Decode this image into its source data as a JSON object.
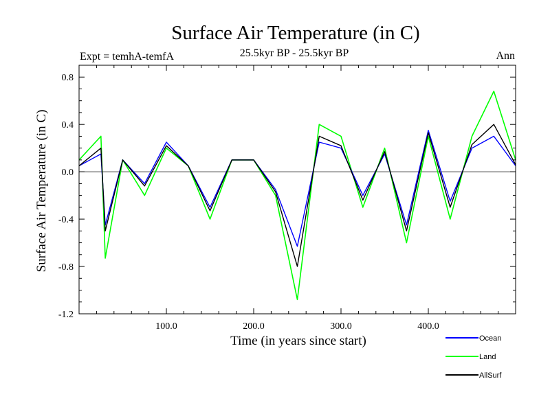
{
  "chart_data": {
    "type": "line",
    "title": "Surface Air Temperature (in C)",
    "subtitle": "25.5kyr BP - 25.5kyr BP",
    "left_label": "Expt = temhA-temfA",
    "right_label": "Ann",
    "xlabel": "Time (in years since start)",
    "ylabel": "Surface Air Temperature (in C)",
    "xlim": [
      0,
      500
    ],
    "ylim": [
      -1.2,
      0.9
    ],
    "x_ticks": [
      100,
      200,
      300,
      400
    ],
    "x_tick_labels": [
      "100.0",
      "200.0",
      "300.0",
      "400.0"
    ],
    "y_ticks": [
      -1.2,
      -0.8,
      -0.4,
      0.0,
      0.4,
      0.8
    ],
    "y_tick_labels": [
      "-1.2",
      "-0.8",
      "-0.4",
      "0.0",
      "0.4",
      "0.8"
    ],
    "zero_line": true,
    "legend_position": "bottom-right",
    "colors": {
      "Ocean": "#0000ff",
      "Land": "#00ff00",
      "AllSurf": "#000000"
    },
    "x": [
      0,
      25,
      30,
      50,
      75,
      100,
      125,
      150,
      175,
      200,
      225,
      250,
      275,
      300,
      325,
      350,
      375,
      400,
      425,
      450,
      475,
      500
    ],
    "series": [
      {
        "name": "Land",
        "values": [
          0.1,
          0.3,
          -0.73,
          0.1,
          -0.2,
          0.2,
          0.05,
          -0.4,
          0.1,
          0.1,
          -0.2,
          -1.08,
          0.4,
          0.3,
          -0.3,
          0.2,
          -0.6,
          0.3,
          -0.4,
          0.3,
          0.68,
          0.1
        ]
      },
      {
        "name": "Ocean",
        "values": [
          0.05,
          0.15,
          -0.45,
          0.1,
          -0.1,
          0.25,
          0.05,
          -0.3,
          0.1,
          0.1,
          -0.15,
          -0.63,
          0.25,
          0.2,
          -0.2,
          0.15,
          -0.45,
          0.35,
          -0.25,
          0.2,
          0.3,
          0.05
        ]
      },
      {
        "name": "AllSurf",
        "values": [
          0.05,
          0.2,
          -0.5,
          0.1,
          -0.12,
          0.22,
          0.05,
          -0.33,
          0.1,
          0.1,
          -0.17,
          -0.8,
          0.3,
          0.22,
          -0.24,
          0.17,
          -0.5,
          0.33,
          -0.3,
          0.23,
          0.4,
          0.06
        ]
      }
    ]
  }
}
